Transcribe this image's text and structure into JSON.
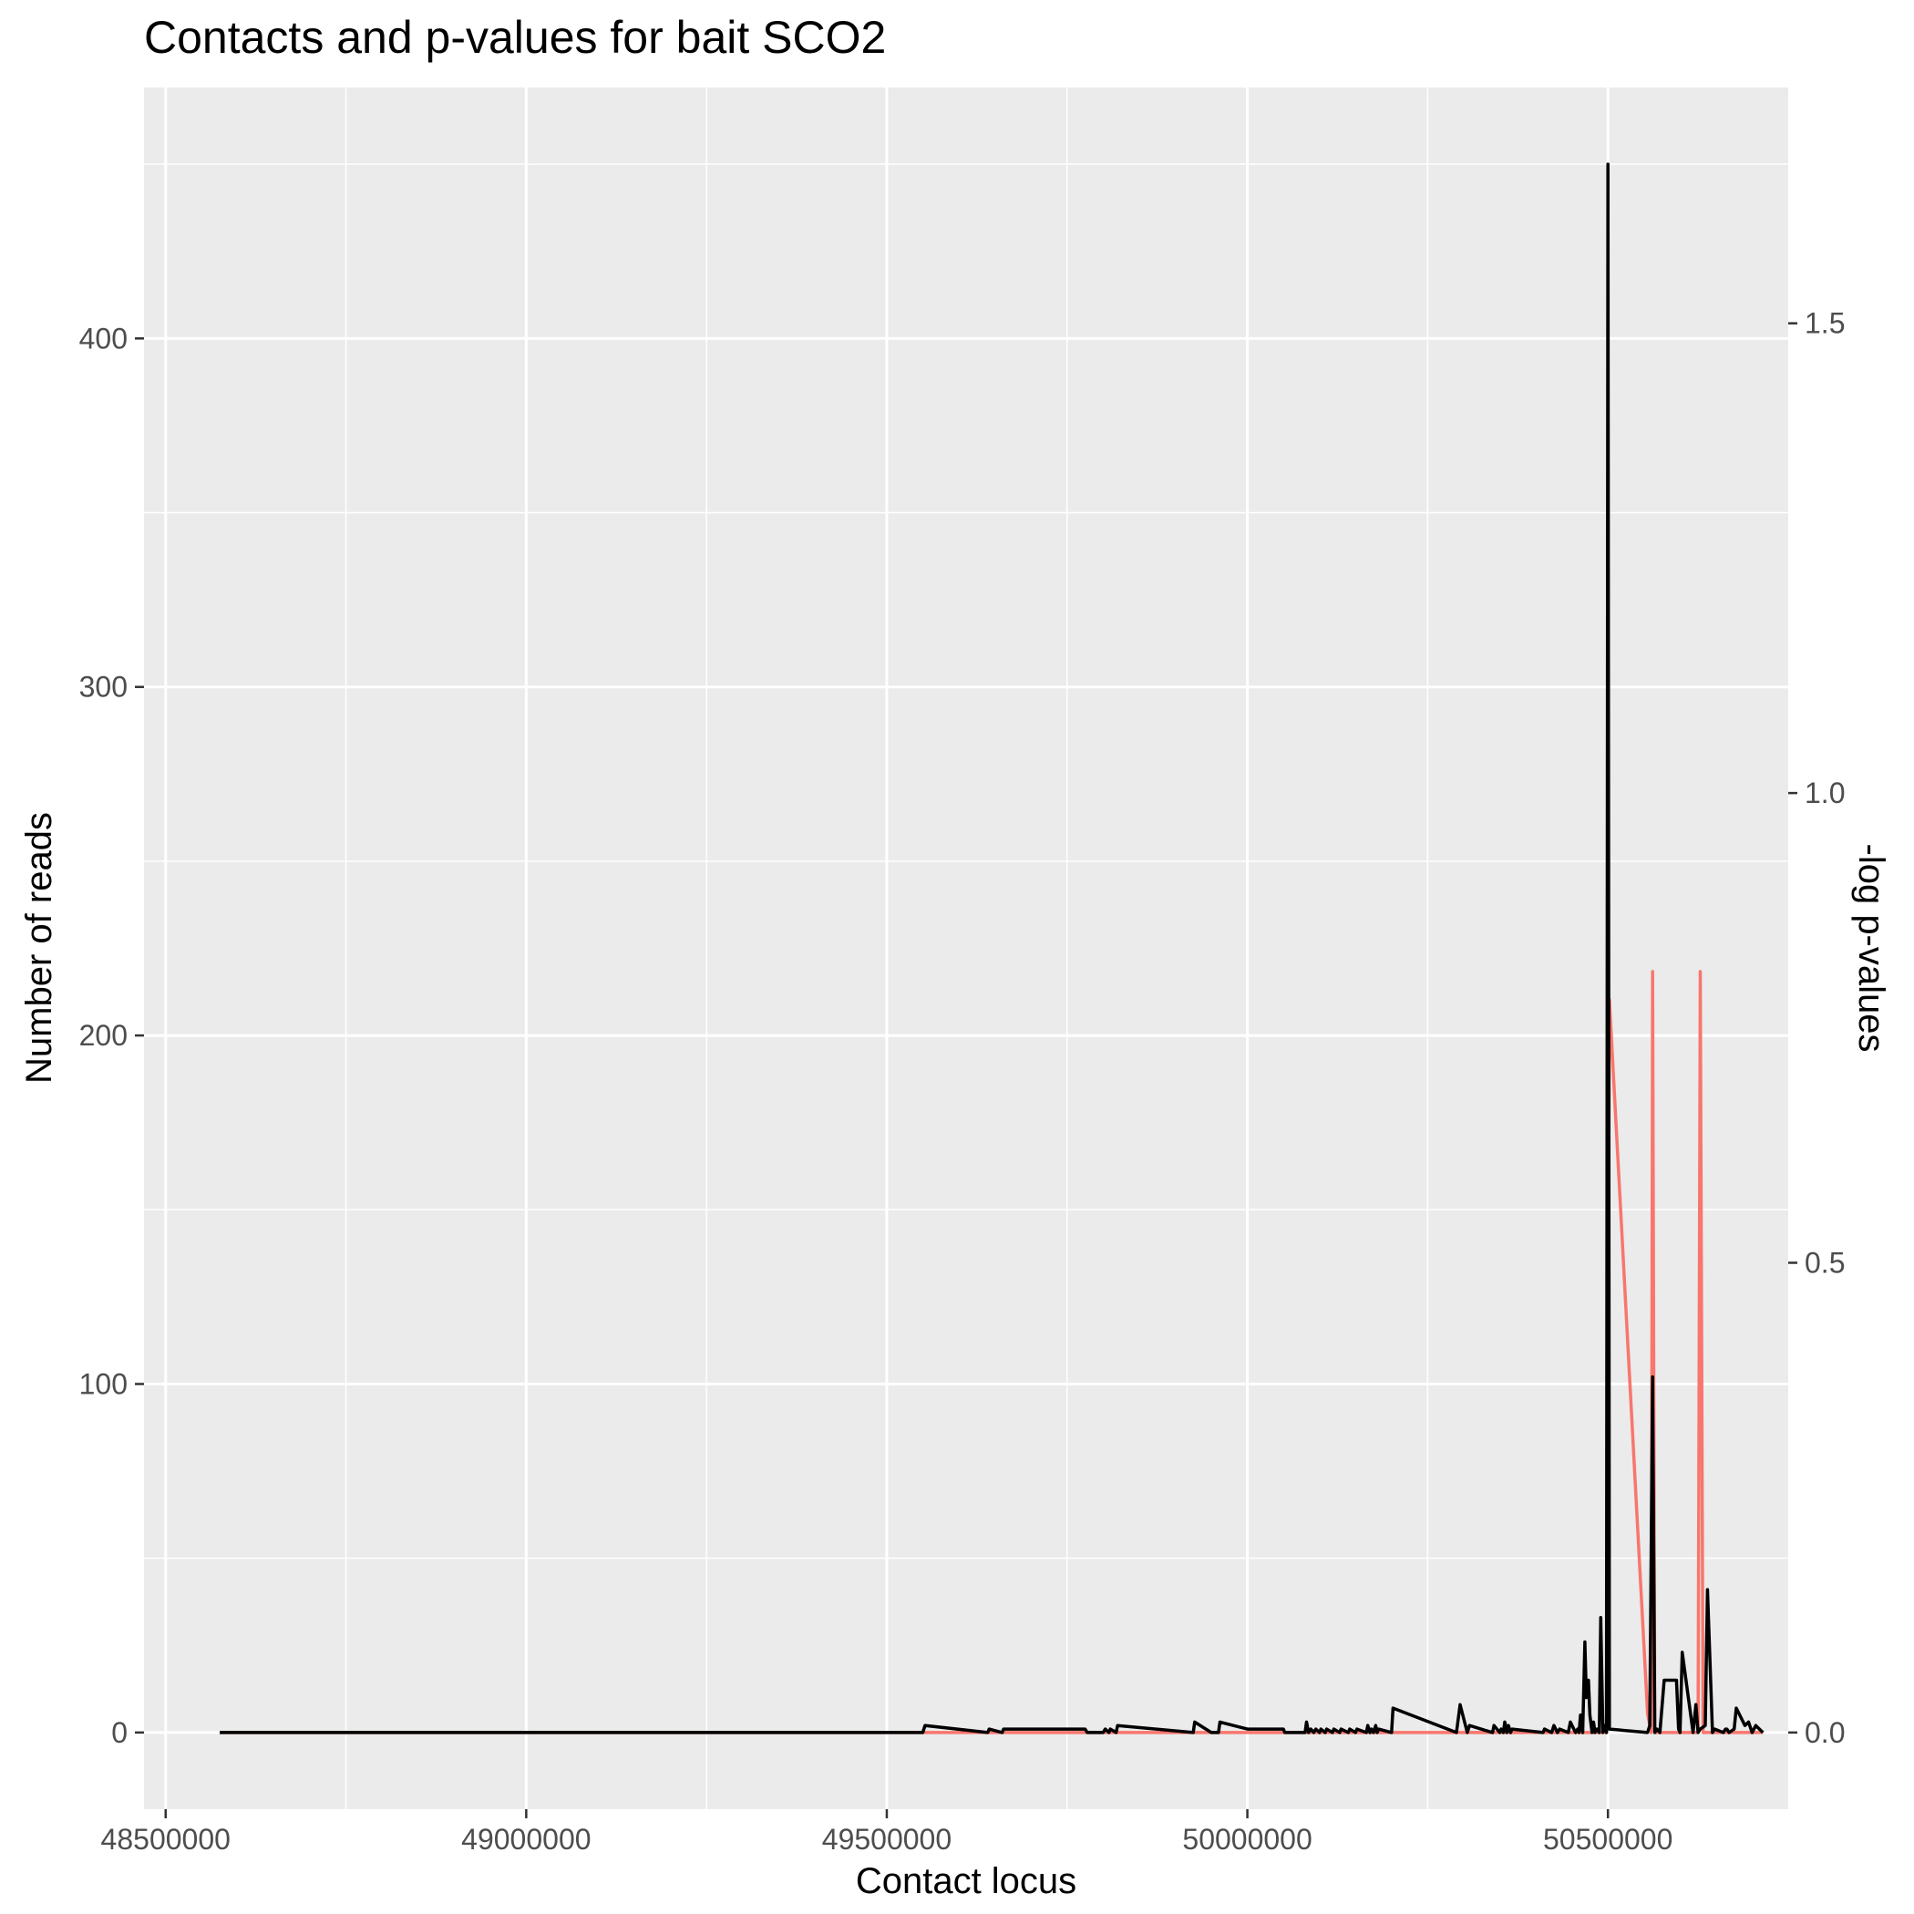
{
  "chart_data": {
    "type": "line",
    "title": "Contacts and p-values for bait SCO2",
    "xlabel": "Contact locus",
    "ylabel": "Number of reads",
    "y2label": "-log p-values",
    "xlim": [
      48470000,
      50750000
    ],
    "ylim": [
      -22,
      472
    ],
    "y2lim": [
      -0.0816,
      1.751
    ],
    "x_ticks": [
      48500000,
      49000000,
      49500000,
      50000000,
      50500000
    ],
    "x_tick_labels": [
      "48500000",
      "49000000",
      "49500000",
      "50000000",
      "50500000"
    ],
    "y_ticks": [
      0,
      100,
      200,
      300,
      400
    ],
    "y_tick_labels": [
      "0",
      "100",
      "200",
      "300",
      "400"
    ],
    "y2_ticks": [
      0,
      0.5,
      1.0,
      1.5
    ],
    "y2_tick_labels": [
      "0.0",
      "0.5",
      "1.0",
      "1.5"
    ],
    "grid": true,
    "colors": {
      "panel": "#ebebeb",
      "grid": "#ffffff",
      "reads": "#000000",
      "pvalues": "#f8766d"
    },
    "series": [
      {
        "axis": "left",
        "x": [
          48575000,
          48580000,
          49550000,
          49553000,
          49640000,
          49642000,
          49660000,
          49662000,
          49775000,
          49778000,
          49800000,
          49803000,
          49808000,
          49810000,
          49818000,
          49820000,
          49925000,
          49927000,
          49950000,
          49960000,
          49962000,
          50000000,
          50050000,
          50052000,
          50080000,
          50082000,
          50085000,
          50088000,
          50092000,
          50095000,
          50100000,
          50102000,
          50108000,
          50110000,
          50118000,
          50120000,
          50128000,
          50130000,
          50140000,
          50142000,
          50150000,
          50152000,
          50165000,
          50167000,
          50170000,
          50172000,
          50175000,
          50178000,
          50180000,
          50182000,
          50200000,
          50202000,
          50290000,
          50295000,
          50305000,
          50308000,
          50340000,
          50342000,
          50350000,
          50352000,
          50355000,
          50357000,
          50360000,
          50362000,
          50365000,
          50367000,
          50410000,
          50412000,
          50422000,
          50425000,
          50430000,
          50433000,
          50445000,
          50448000,
          50455000,
          50458000,
          50460000,
          50462000,
          50465000,
          50468000,
          50470000,
          50473000,
          50475000,
          50478000,
          50480000,
          50482000,
          50485000,
          50488000,
          50490000,
          50493000,
          50496000,
          50498000,
          50500000,
          50502000,
          50555000,
          50558000,
          50562000,
          50565000,
          50568000,
          50572000,
          50578000,
          50582000,
          50595000,
          50598000,
          50600000,
          50603000,
          50618000,
          50622000,
          50625000,
          50628000,
          50635000,
          50638000,
          50645000,
          50648000,
          50660000,
          50663000,
          50665000,
          50668000,
          50675000,
          50678000,
          50690000,
          50695000,
          50700000,
          50705000,
          50715000
        ],
        "values": [
          0,
          0,
          0,
          2,
          0,
          1,
          0,
          1,
          1,
          0,
          0,
          1,
          0,
          1,
          0,
          2,
          0,
          3,
          0,
          0,
          3,
          1,
          1,
          0,
          0,
          3,
          0,
          1,
          0,
          1,
          0,
          1,
          0,
          1,
          0,
          1,
          0,
          1,
          0,
          1,
          0,
          1,
          0,
          2,
          0,
          1,
          0,
          2,
          0,
          1,
          0,
          7,
          0,
          8,
          0,
          2,
          0,
          2,
          0,
          1,
          0,
          3,
          0,
          2,
          0,
          1,
          0,
          1,
          0,
          2,
          0,
          1,
          0,
          3,
          0,
          1,
          0,
          5,
          0,
          26,
          10,
          15,
          5,
          0,
          3,
          0,
          1,
          0,
          33,
          0,
          2,
          0,
          450,
          1,
          0,
          2,
          102,
          0,
          1,
          0,
          15,
          15,
          15,
          1,
          0,
          23,
          0,
          8,
          0,
          1,
          2,
          41,
          0,
          1,
          0,
          1,
          1,
          0,
          1,
          7,
          2,
          3,
          0,
          2,
          0
        ]
      },
      {
        "axis": "right",
        "x": [
          48575000,
          49550000,
          49640000,
          50050000,
          50498000,
          50502000,
          50555000,
          50560000,
          50562000,
          50565000,
          50620000,
          50625000,
          50628000,
          50632000,
          50715000
        ],
        "values": [
          0,
          0,
          0,
          0,
          0,
          0.78,
          0.02,
          0,
          0.81,
          0,
          0,
          0,
          0.81,
          0,
          0
        ]
      }
    ]
  }
}
